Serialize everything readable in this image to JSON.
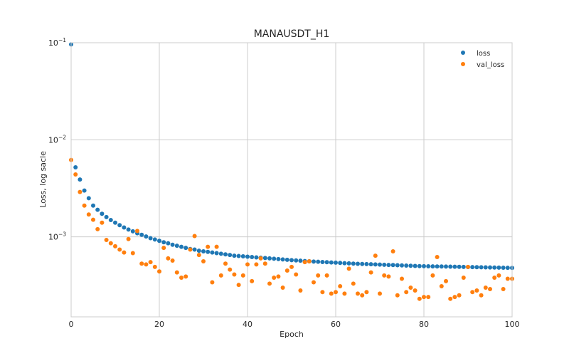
{
  "chart_data": {
    "type": "scatter",
    "title": "MANAUSDT_H1",
    "xlabel": "Epoch",
    "ylabel": "Loss, log sacle",
    "xlim": [
      0,
      100
    ],
    "ylim": [
      0.00015,
      0.1
    ],
    "yscale": "log",
    "x_ticks": [
      0,
      20,
      40,
      60,
      80,
      100
    ],
    "y_ticks": [
      {
        "value": 0.001,
        "base": "10",
        "exp": "−3"
      },
      {
        "value": 0.01,
        "base": "10",
        "exp": "−2"
      },
      {
        "value": 0.1,
        "base": "10",
        "exp": "−1"
      }
    ],
    "grid": true,
    "legend_position": "top-right",
    "series": [
      {
        "name": "loss",
        "color": "#1f77b4",
        "x": [
          0,
          1,
          2,
          3,
          4,
          5,
          6,
          7,
          8,
          9,
          10,
          11,
          12,
          13,
          14,
          15,
          16,
          17,
          18,
          19,
          20,
          21,
          22,
          23,
          24,
          25,
          26,
          27,
          28,
          29,
          30,
          31,
          32,
          33,
          34,
          35,
          36,
          37,
          38,
          39,
          40,
          41,
          42,
          43,
          44,
          45,
          46,
          47,
          48,
          49,
          50,
          51,
          52,
          53,
          54,
          55,
          56,
          57,
          58,
          59,
          60,
          61,
          62,
          63,
          64,
          65,
          66,
          67,
          68,
          69,
          70,
          71,
          72,
          73,
          74,
          75,
          76,
          77,
          78,
          79,
          80,
          81,
          82,
          83,
          84,
          85,
          86,
          87,
          88,
          89,
          90,
          91,
          92,
          93,
          94,
          95,
          96,
          97,
          98,
          99,
          100
        ],
        "values": [
          0.096,
          0.0052,
          0.0039,
          0.003,
          0.0025,
          0.0021,
          0.0019,
          0.00173,
          0.0016,
          0.00149,
          0.0014,
          0.00132,
          0.00125,
          0.00119,
          0.00114,
          0.00109,
          0.00105,
          0.00101,
          0.00097,
          0.00094,
          0.00091,
          0.00088,
          0.00086,
          0.00083,
          0.00081,
          0.00079,
          0.00077,
          0.00075,
          0.00074,
          0.00072,
          0.00071,
          0.0007,
          0.00069,
          0.00068,
          0.00067,
          0.00066,
          0.00065,
          0.00064,
          0.000635,
          0.00063,
          0.000625,
          0.00062,
          0.000615,
          0.00061,
          0.000605,
          0.0006,
          0.000595,
          0.00059,
          0.000585,
          0.00058,
          0.000576,
          0.000572,
          0.000568,
          0.000564,
          0.00056,
          0.000557,
          0.000554,
          0.000551,
          0.000548,
          0.000545,
          0.000542,
          0.000539,
          0.000536,
          0.000533,
          0.00053,
          0.000528,
          0.000526,
          0.000524,
          0.000522,
          0.00052,
          0.000518,
          0.000516,
          0.000514,
          0.000512,
          0.00051,
          0.000508,
          0.000506,
          0.000504,
          0.000502,
          0.0005,
          0.000499,
          0.000498,
          0.000497,
          0.000496,
          0.000495,
          0.000494,
          0.000493,
          0.000492,
          0.000491,
          0.00049,
          0.000489,
          0.000488,
          0.000487,
          0.000486,
          0.000485,
          0.000484,
          0.000483,
          0.000482,
          0.000481,
          0.00048,
          0.000479
        ]
      },
      {
        "name": "val_loss",
        "color": "#ff7f0e",
        "x": [
          0,
          1,
          2,
          3,
          4,
          5,
          6,
          7,
          8,
          9,
          10,
          11,
          12,
          13,
          14,
          15,
          16,
          17,
          18,
          19,
          20,
          21,
          22,
          23,
          24,
          25,
          26,
          27,
          28,
          29,
          30,
          31,
          32,
          33,
          34,
          35,
          36,
          37,
          38,
          39,
          40,
          41,
          42,
          43,
          44,
          45,
          46,
          47,
          48,
          49,
          50,
          51,
          52,
          53,
          54,
          55,
          56,
          57,
          58,
          59,
          60,
          61,
          62,
          63,
          64,
          65,
          66,
          67,
          68,
          69,
          70,
          71,
          72,
          73,
          74,
          75,
          76,
          77,
          78,
          79,
          80,
          81,
          82,
          83,
          84,
          85,
          86,
          87,
          88,
          89,
          90,
          91,
          92,
          93,
          94,
          95,
          96,
          97,
          98,
          99,
          100
        ],
        "values": [
          0.0062,
          0.0044,
          0.0029,
          0.0021,
          0.0017,
          0.0015,
          0.0012,
          0.0014,
          0.00093,
          0.00086,
          0.0008,
          0.00074,
          0.00069,
          0.00095,
          0.00068,
          0.00115,
          0.00053,
          0.00052,
          0.00055,
          0.00049,
          0.00044,
          0.00077,
          0.0006,
          0.00057,
          0.00043,
          0.00038,
          0.00039,
          0.00074,
          0.00102,
          0.00065,
          0.00056,
          0.00079,
          0.00034,
          0.00079,
          0.0004,
          0.00053,
          0.00046,
          0.00041,
          0.00032,
          0.0004,
          0.00052,
          0.00035,
          0.00052,
          0.0006,
          0.00053,
          0.00033,
          0.00038,
          0.00039,
          0.0003,
          0.00045,
          0.00049,
          0.00041,
          0.00028,
          0.00055,
          0.00056,
          0.00034,
          0.0004,
          0.00027,
          0.0004,
          0.00026,
          0.00027,
          0.00031,
          0.00026,
          0.00047,
          0.00033,
          0.00026,
          0.00025,
          0.00027,
          0.00043,
          0.00064,
          0.00026,
          0.0004,
          0.00039,
          0.00071,
          0.00025,
          0.00037,
          0.00027,
          0.0003,
          0.00028,
          0.00023,
          0.00024,
          0.00024,
          0.0004,
          0.00062,
          0.00031,
          0.00035,
          0.00023,
          0.00024,
          0.00025,
          0.00038,
          0.00049,
          0.00027,
          0.00028,
          0.00025,
          0.0003,
          0.00029,
          0.00038,
          0.0004,
          0.00029,
          0.00037,
          0.00037
        ]
      }
    ]
  }
}
